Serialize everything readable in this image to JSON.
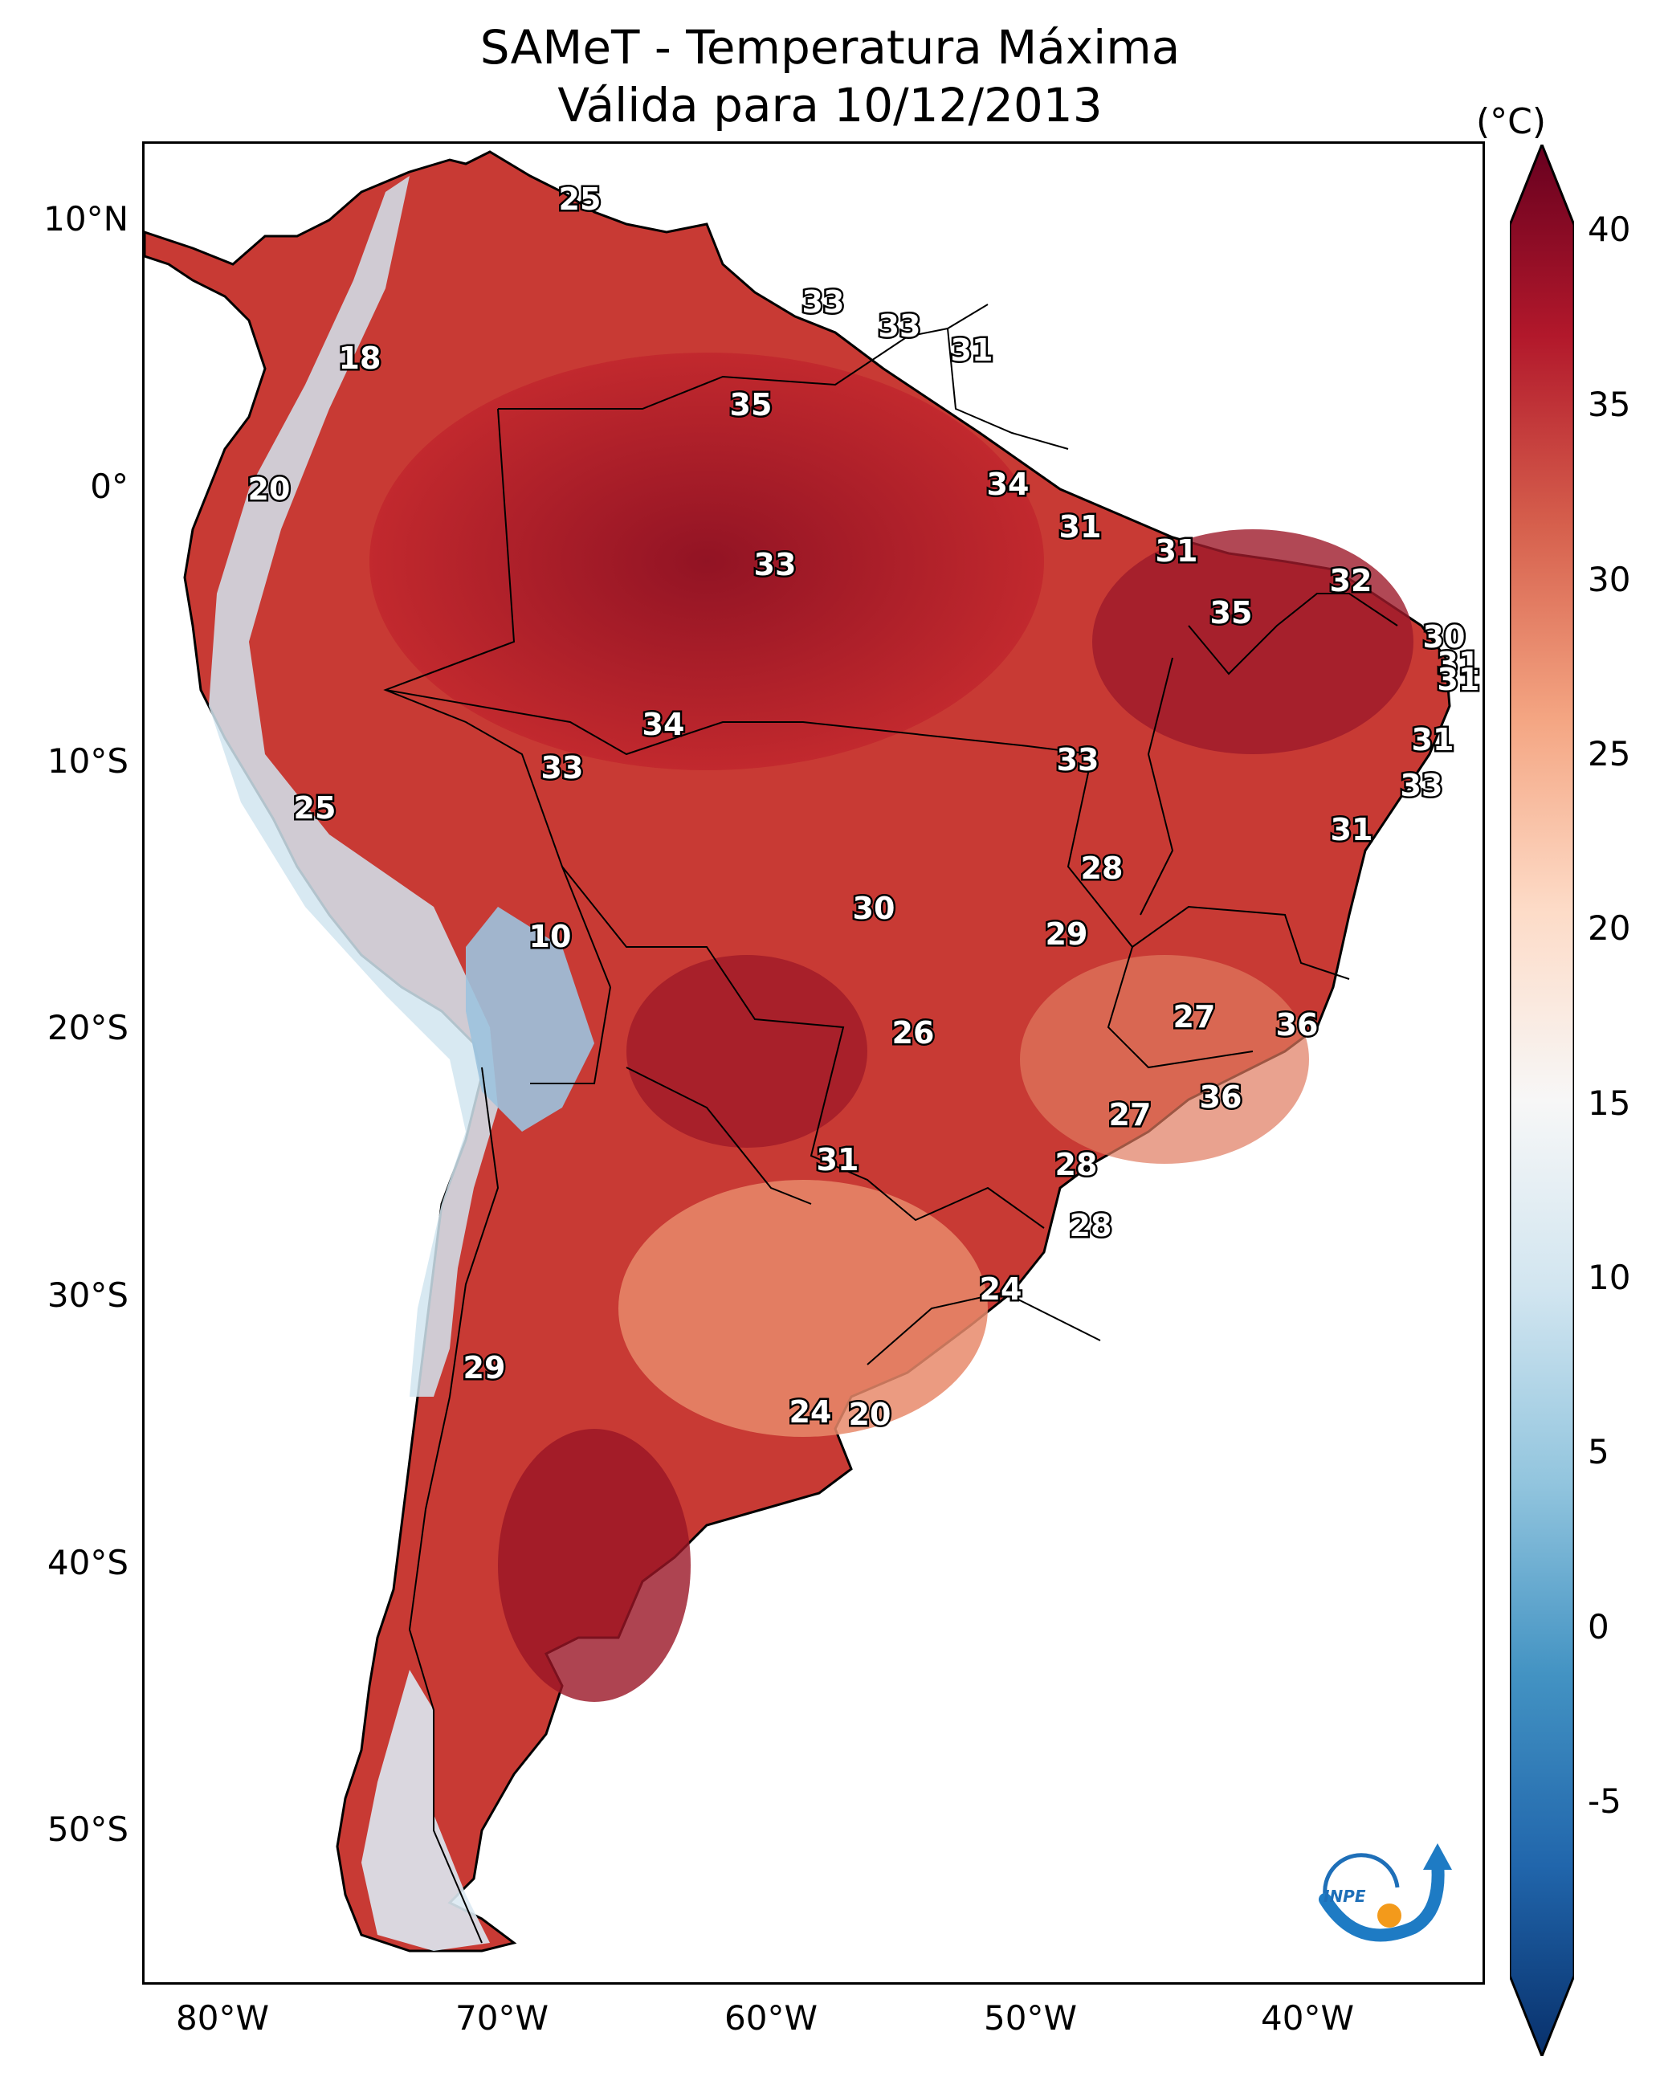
{
  "title": "SAMeT - Temperatura Máxima",
  "subtitle": "Válida para 10/12/2013",
  "colorbar": {
    "unit": "(°C)",
    "ticks": [
      "40",
      "35",
      "30",
      "25",
      "20",
      "15",
      "10",
      "5",
      "0",
      "-5"
    ],
    "range": [
      -5,
      40
    ],
    "colors": [
      "#08306b",
      "#2166ac",
      "#4393c3",
      "#92c5de",
      "#d1e5f0",
      "#f7f7f7",
      "#fddbc7",
      "#f4a582",
      "#d6604d",
      "#b2182b",
      "#67001f"
    ]
  },
  "axes": {
    "lat_labels": [
      "10°N",
      "0°",
      "10°S",
      "20°S",
      "30°S",
      "40°S",
      "50°S"
    ],
    "lon_labels": [
      "80°W",
      "70°W",
      "60°W",
      "50°W",
      "40°W"
    ]
  },
  "isotherm_labels": [
    "25",
    "33",
    "33",
    "31",
    "18",
    "35",
    "20",
    "34",
    "31",
    "33",
    "31",
    "32",
    "35",
    "30",
    "31",
    "31",
    "34",
    "33",
    "33",
    "31",
    "25",
    "33",
    "31",
    "28",
    "30",
    "29",
    "10",
    "27",
    "36",
    "26",
    "36",
    "27",
    "31",
    "28",
    "28",
    "24",
    "29",
    "24",
    "20"
  ],
  "logo": {
    "text": "INPE",
    "icon": "inpe-logo-icon"
  }
}
